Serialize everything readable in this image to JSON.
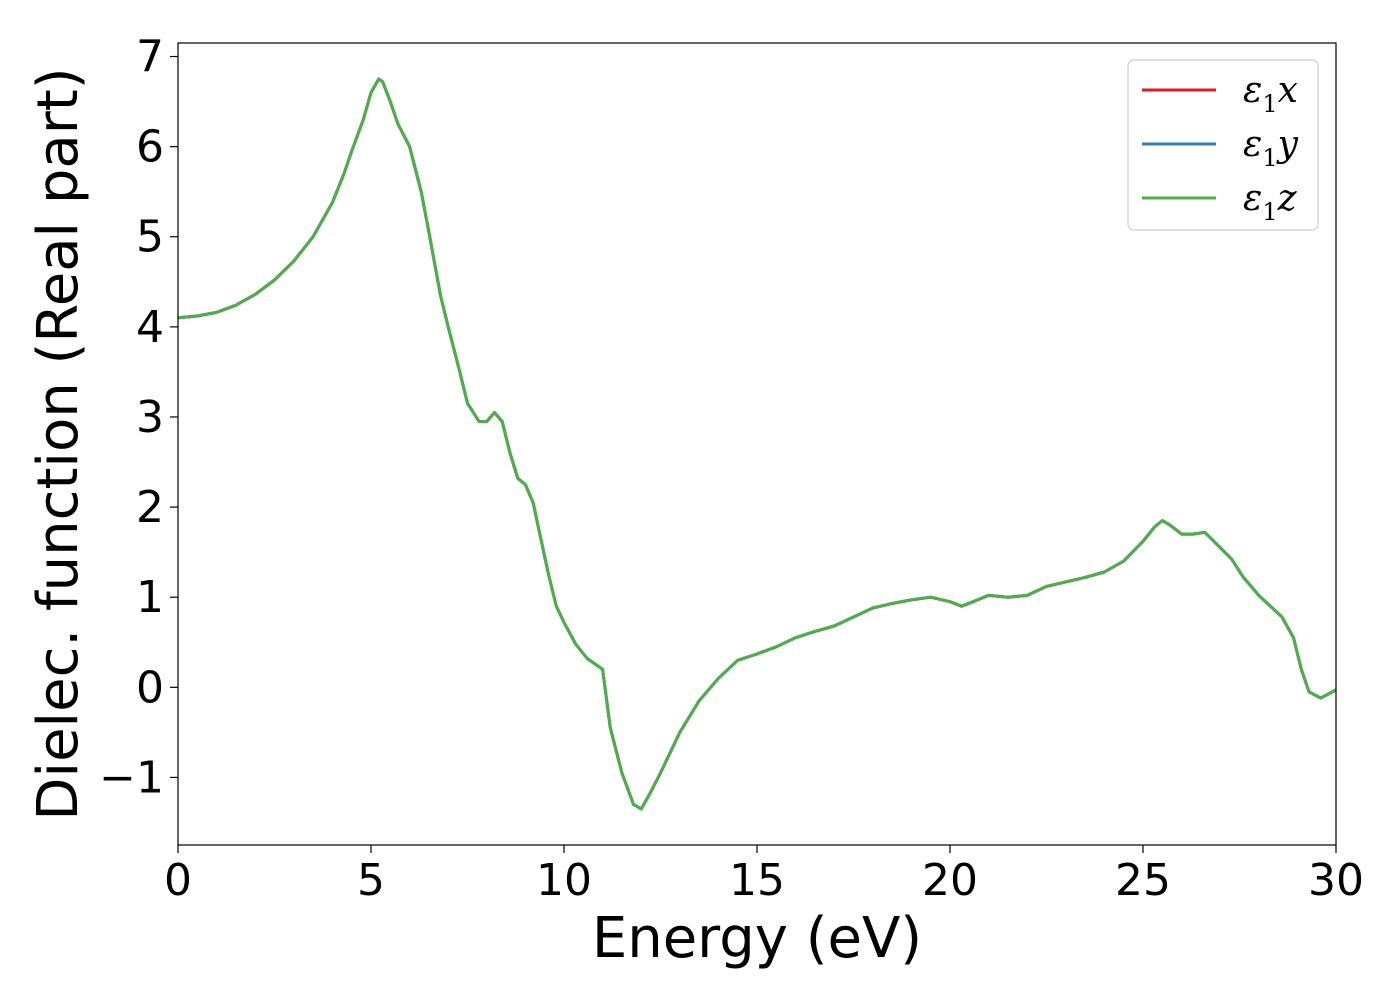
{
  "chart_data": {
    "type": "line",
    "title": "",
    "xlabel": "Energy (eV)",
    "ylabel": "Dielec. function (Real part)",
    "xlim": [
      0,
      30
    ],
    "ylim": [
      -1.75,
      7.15
    ],
    "xticks": [
      0,
      5,
      10,
      15,
      20,
      25,
      30
    ],
    "yticks": [
      -1,
      0,
      1,
      2,
      3,
      4,
      5,
      6,
      7
    ],
    "ytick_labels": [
      "−1",
      "0",
      "1",
      "2",
      "3",
      "4",
      "5",
      "6",
      "7"
    ],
    "grid": false,
    "legend_position": "top-right",
    "series": [
      {
        "name": "ε1x",
        "legend_main": "ε",
        "legend_sub": "1",
        "legend_var": "x",
        "color": "#e41a1c",
        "x": [
          0,
          0.5,
          1,
          1.5,
          2,
          2.5,
          3,
          3.5,
          4,
          4.3,
          4.5,
          4.8,
          5,
          5.2,
          5.3,
          5.5,
          5.7,
          6,
          6.3,
          6.5,
          6.8,
          7,
          7.3,
          7.5,
          7.8,
          8,
          8.2,
          8.4,
          8.6,
          8.8,
          9,
          9.2,
          9.4,
          9.6,
          9.8,
          10,
          10.3,
          10.6,
          11,
          11.2,
          11.5,
          11.8,
          12,
          12.2,
          12.5,
          13,
          13.5,
          14,
          14.5,
          15,
          15.5,
          16,
          16.5,
          17,
          17.5,
          18,
          18.5,
          19,
          19.5,
          20,
          20.3,
          20.6,
          21,
          21.5,
          22,
          22.5,
          23,
          23.5,
          24,
          24.5,
          25,
          25.3,
          25.5,
          25.7,
          26,
          26.3,
          26.6,
          27,
          27.3,
          27.6,
          28,
          28.3,
          28.6,
          28.9,
          29.1,
          29.3,
          29.6,
          30
        ],
        "y": [
          4.1,
          4.12,
          4.16,
          4.24,
          4.36,
          4.52,
          4.73,
          5.0,
          5.38,
          5.7,
          5.95,
          6.3,
          6.6,
          6.75,
          6.72,
          6.5,
          6.25,
          6.0,
          5.5,
          5.05,
          4.35,
          4.0,
          3.5,
          3.15,
          2.95,
          2.95,
          3.05,
          2.95,
          2.6,
          2.32,
          2.25,
          2.05,
          1.65,
          1.25,
          0.9,
          0.72,
          0.48,
          0.32,
          0.2,
          -0.45,
          -0.95,
          -1.3,
          -1.35,
          -1.2,
          -0.95,
          -0.5,
          -0.15,
          0.1,
          0.3,
          0.37,
          0.45,
          0.55,
          0.62,
          0.68,
          0.78,
          0.88,
          0.93,
          0.97,
          1.0,
          0.95,
          0.9,
          0.95,
          1.02,
          1.0,
          1.02,
          1.12,
          1.17,
          1.22,
          1.28,
          1.4,
          1.62,
          1.78,
          1.85,
          1.8,
          1.7,
          1.7,
          1.72,
          1.55,
          1.42,
          1.22,
          1.02,
          0.9,
          0.78,
          0.55,
          0.2,
          -0.05,
          -0.12,
          -0.03
        ]
      },
      {
        "name": "ε1y",
        "legend_main": "ε",
        "legend_sub": "1",
        "legend_var": "y",
        "color": "#377eb8",
        "x": [
          0,
          0.5,
          1,
          1.5,
          2,
          2.5,
          3,
          3.5,
          4,
          4.3,
          4.5,
          4.8,
          5,
          5.2,
          5.3,
          5.5,
          5.7,
          6,
          6.3,
          6.5,
          6.8,
          7,
          7.3,
          7.5,
          7.8,
          8,
          8.2,
          8.4,
          8.6,
          8.8,
          9,
          9.2,
          9.4,
          9.6,
          9.8,
          10,
          10.3,
          10.6,
          11,
          11.2,
          11.5,
          11.8,
          12,
          12.2,
          12.5,
          13,
          13.5,
          14,
          14.5,
          15,
          15.5,
          16,
          16.5,
          17,
          17.5,
          18,
          18.5,
          19,
          19.5,
          20,
          20.3,
          20.6,
          21,
          21.5,
          22,
          22.5,
          23,
          23.5,
          24,
          24.5,
          25,
          25.3,
          25.5,
          25.7,
          26,
          26.3,
          26.6,
          27,
          27.3,
          27.6,
          28,
          28.3,
          28.6,
          28.9,
          29.1,
          29.3,
          29.6,
          30
        ],
        "y": [
          4.1,
          4.12,
          4.16,
          4.24,
          4.36,
          4.52,
          4.73,
          5.0,
          5.38,
          5.7,
          5.95,
          6.3,
          6.6,
          6.75,
          6.72,
          6.5,
          6.25,
          6.0,
          5.5,
          5.05,
          4.35,
          4.0,
          3.5,
          3.15,
          2.95,
          2.95,
          3.05,
          2.95,
          2.6,
          2.32,
          2.25,
          2.05,
          1.65,
          1.25,
          0.9,
          0.72,
          0.48,
          0.32,
          0.2,
          -0.45,
          -0.95,
          -1.3,
          -1.35,
          -1.2,
          -0.95,
          -0.5,
          -0.15,
          0.1,
          0.3,
          0.37,
          0.45,
          0.55,
          0.62,
          0.68,
          0.78,
          0.88,
          0.93,
          0.97,
          1.0,
          0.95,
          0.9,
          0.95,
          1.02,
          1.0,
          1.02,
          1.12,
          1.17,
          1.22,
          1.28,
          1.4,
          1.62,
          1.78,
          1.85,
          1.8,
          1.7,
          1.7,
          1.72,
          1.55,
          1.42,
          1.22,
          1.02,
          0.9,
          0.78,
          0.55,
          0.2,
          -0.05,
          -0.12,
          -0.03
        ]
      },
      {
        "name": "ε1z",
        "legend_main": "ε",
        "legend_sub": "1",
        "legend_var": "z",
        "color": "#4daf4a",
        "x": [
          0,
          0.5,
          1,
          1.5,
          2,
          2.5,
          3,
          3.5,
          4,
          4.3,
          4.5,
          4.8,
          5,
          5.2,
          5.3,
          5.5,
          5.7,
          6,
          6.3,
          6.5,
          6.8,
          7,
          7.3,
          7.5,
          7.8,
          8,
          8.2,
          8.4,
          8.6,
          8.8,
          9,
          9.2,
          9.4,
          9.6,
          9.8,
          10,
          10.3,
          10.6,
          11,
          11.2,
          11.5,
          11.8,
          12,
          12.2,
          12.5,
          13,
          13.5,
          14,
          14.5,
          15,
          15.5,
          16,
          16.5,
          17,
          17.5,
          18,
          18.5,
          19,
          19.5,
          20,
          20.3,
          20.6,
          21,
          21.5,
          22,
          22.5,
          23,
          23.5,
          24,
          24.5,
          25,
          25.3,
          25.5,
          25.7,
          26,
          26.3,
          26.6,
          27,
          27.3,
          27.6,
          28,
          28.3,
          28.6,
          28.9,
          29.1,
          29.3,
          29.6,
          30
        ],
        "y": [
          4.1,
          4.12,
          4.16,
          4.24,
          4.36,
          4.52,
          4.73,
          5.0,
          5.38,
          5.7,
          5.95,
          6.3,
          6.6,
          6.75,
          6.72,
          6.5,
          6.25,
          6.0,
          5.5,
          5.05,
          4.35,
          4.0,
          3.5,
          3.15,
          2.95,
          2.95,
          3.05,
          2.95,
          2.6,
          2.32,
          2.25,
          2.05,
          1.65,
          1.25,
          0.9,
          0.72,
          0.48,
          0.32,
          0.2,
          -0.45,
          -0.95,
          -1.3,
          -1.35,
          -1.2,
          -0.95,
          -0.5,
          -0.15,
          0.1,
          0.3,
          0.37,
          0.45,
          0.55,
          0.62,
          0.68,
          0.78,
          0.88,
          0.93,
          0.97,
          1.0,
          0.95,
          0.9,
          0.95,
          1.02,
          1.0,
          1.02,
          1.12,
          1.17,
          1.22,
          1.28,
          1.4,
          1.62,
          1.78,
          1.85,
          1.8,
          1.7,
          1.7,
          1.72,
          1.55,
          1.42,
          1.22,
          1.02,
          0.9,
          0.78,
          0.55,
          0.2,
          -0.05,
          -0.12,
          -0.03
        ]
      }
    ]
  }
}
